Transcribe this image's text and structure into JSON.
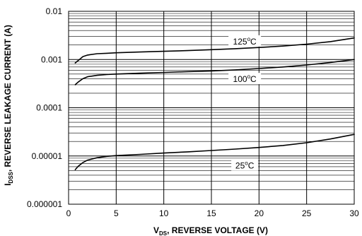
{
  "chart_data": {
    "type": "line",
    "x_axis": {
      "label_main": "V",
      "label_sub": "DS",
      "label_rest": ", REVERSE VOLTAGE (V)",
      "range": [
        0,
        30
      ],
      "ticks": [
        0,
        5,
        10,
        15,
        20,
        25,
        30
      ],
      "tick_labels": [
        "0",
        "5",
        "10",
        "15",
        "20",
        "25",
        "30"
      ]
    },
    "y_axis": {
      "label_main": "I",
      "label_sub": "DSS",
      "label_rest": ", REVERSE LEAKAGE CURRENT (A)",
      "scale": "log",
      "range": [
        1e-06,
        0.01
      ],
      "ticks": [
        1e-06,
        1e-05,
        0.0001,
        0.001,
        0.01
      ],
      "tick_labels": [
        "0.000001",
        "0.00001",
        "0.0001",
        "0.001",
        "0.01"
      ]
    },
    "grid": true,
    "series": [
      {
        "name": "125°C",
        "label_value": "125",
        "label_unit": "C",
        "x": [
          0.7,
          1,
          1.5,
          2,
          3,
          4,
          5,
          7.5,
          10,
          12.5,
          15,
          17.5,
          20,
          22.5,
          25,
          27.5,
          30
        ],
        "y": [
          0.00085,
          0.00095,
          0.00115,
          0.00124,
          0.00132,
          0.00135,
          0.00138,
          0.00143,
          0.00148,
          0.00153,
          0.0016,
          0.00168,
          0.00178,
          0.0019,
          0.00208,
          0.00235,
          0.0028
        ]
      },
      {
        "name": "100°C",
        "label_value": "100",
        "label_unit": "C",
        "x": [
          0.7,
          1,
          1.5,
          2,
          3,
          4,
          5,
          7.5,
          10,
          12.5,
          15,
          17.5,
          20,
          22.5,
          25,
          27.5,
          30
        ],
        "y": [
          0.0003,
          0.00034,
          0.0004,
          0.00044,
          0.00047,
          0.00049,
          0.0005,
          0.00052,
          0.00054,
          0.00056,
          0.00058,
          0.00061,
          0.00065,
          0.0007,
          0.00077,
          0.00087,
          0.001
        ]
      },
      {
        "name": "25°C",
        "label_value": "25",
        "label_unit": "C",
        "x": [
          0.7,
          1,
          1.5,
          2,
          3,
          4,
          5,
          7.5,
          10,
          12.5,
          15,
          17.5,
          20,
          22.5,
          25,
          27.5,
          30
        ],
        "y": [
          5.2e-06,
          6.1e-06,
          7.3e-06,
          8.2e-06,
          9.2e-06,
          9.8e-06,
          1.02e-05,
          1.08e-05,
          1.15e-05,
          1.22e-05,
          1.3e-05,
          1.39e-05,
          1.5e-05,
          1.65e-05,
          1.88e-05,
          2.25e-05,
          2.8e-05
        ]
      }
    ],
    "annotations": [
      {
        "series": "125°C",
        "value": "125",
        "unit": "C",
        "x": 18.5,
        "y": 0.00235
      },
      {
        "series": "100°C",
        "value": "100",
        "unit": "C",
        "x": 18.5,
        "y": 0.00039
      },
      {
        "series": "25°C",
        "value": "25",
        "unit": "C",
        "x": 18.5,
        "y": 6.3e-06
      }
    ]
  }
}
